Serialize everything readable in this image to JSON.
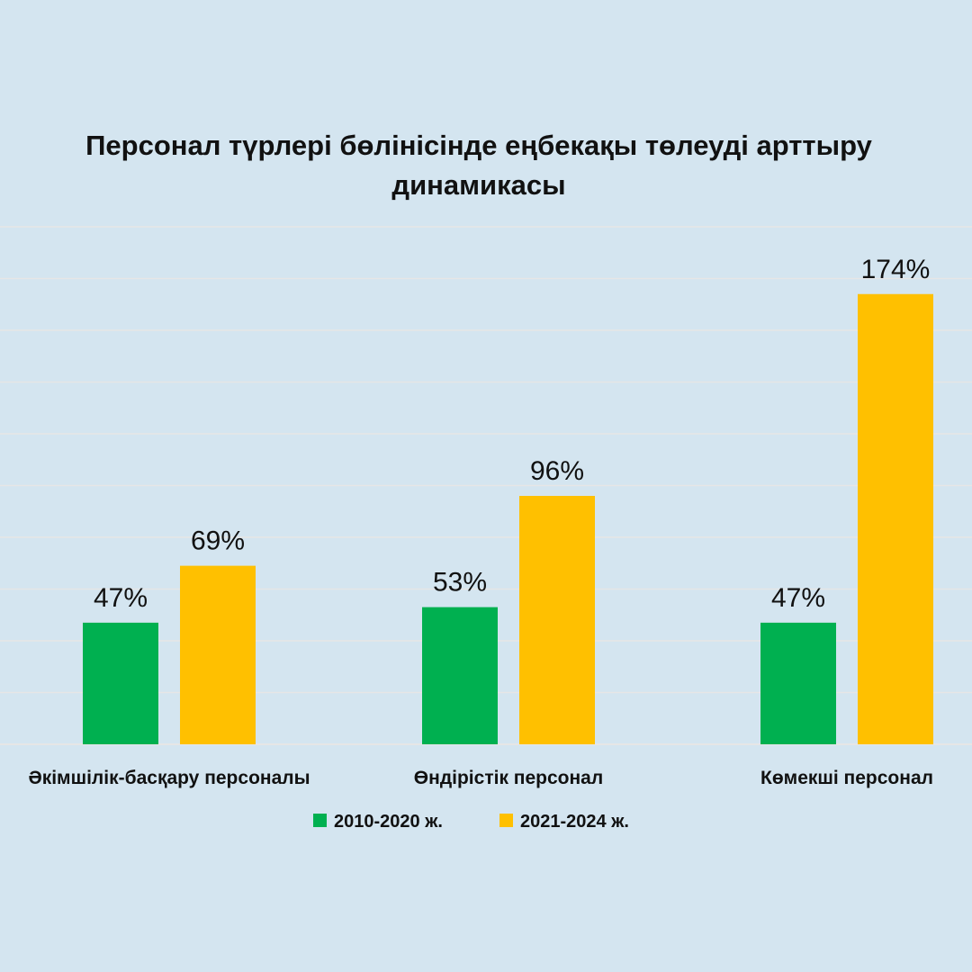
{
  "chart_data": {
    "type": "bar",
    "title": "Персонал түрлері бөлінісінде еңбекақы төлеуді арттыру динамикасы",
    "title_lines": [
      "Персонал түрлері бөлінісінде еңбекақы төлеуді арттыру",
      "динамикасы"
    ],
    "categories": [
      "Әкімшілік-басқару персоналы",
      "Өндірістік персонал",
      "Көмекші персонал"
    ],
    "series": [
      {
        "name": "2010-2020 ж.",
        "color": "#00b050",
        "values": [
          47,
          53,
          47
        ],
        "labels": [
          "47%",
          "53%",
          "47%"
        ]
      },
      {
        "name": "2021-2024 ж.",
        "color": "#ffc000",
        "values": [
          69,
          96,
          174
        ],
        "labels": [
          "69%",
          "96%",
          "174%"
        ]
      }
    ],
    "ylim": [
      0,
      200
    ],
    "grid": true,
    "legend": "bottom",
    "xlabel": "",
    "ylabel": ""
  },
  "colors": {
    "background": "#d4e5f0",
    "grid": "#e6e6e6",
    "text": "#111111"
  }
}
